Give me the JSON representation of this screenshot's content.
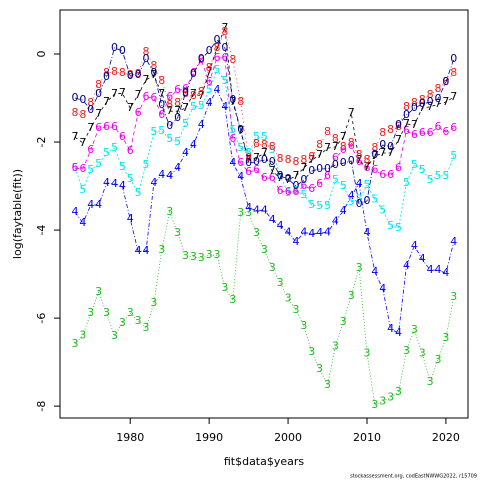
{
  "chart_data": {
    "type": "line",
    "xlabel": "fit$data$years",
    "ylabel": "log(faytable(fit))",
    "footer": "stockassessment.org, codEastNWWG2022, r15709",
    "xlim": [
      1971.1,
      2022.8
    ],
    "ylim": [
      -8.27,
      1.0
    ],
    "xticks": [
      1980,
      1990,
      2000,
      2010,
      2020
    ],
    "yticks": [
      -8,
      -6,
      -4,
      -2,
      0
    ],
    "x": [
      1973,
      1974,
      1975,
      1976,
      1977,
      1978,
      1979,
      1980,
      1981,
      1982,
      1983,
      1984,
      1985,
      1986,
      1987,
      1988,
      1989,
      1990,
      1991,
      1992,
      1993,
      1994,
      1995,
      1996,
      1997,
      1998,
      1999,
      2000,
      2001,
      2002,
      2003,
      2004,
      2005,
      2006,
      2007,
      2008,
      2009,
      2010,
      2011,
      2012,
      2013,
      2014,
      2015,
      2016,
      2017,
      2018,
      2019,
      2020,
      2021
    ],
    "series": [
      {
        "name": "3",
        "color": "#22bb22",
        "values": [
          -6.59,
          -6.39,
          -5.89,
          -5.41,
          -5.89,
          -6.41,
          -6.11,
          -5.89,
          -6.07,
          -6.23,
          -5.66,
          -4.45,
          -3.59,
          -4.07,
          -4.59,
          -4.61,
          -4.64,
          -4.57,
          -4.57,
          -5.32,
          -5.59,
          -3.61,
          -3.61,
          -4.07,
          -4.45,
          -4.86,
          -5.2,
          -5.55,
          -5.82,
          -6.18,
          -6.77,
          -7.16,
          -7.52,
          -6.64,
          -6.09,
          -5.5,
          -4.86,
          -6.8,
          -7.98,
          -7.89,
          -7.8,
          -7.68,
          -6.75,
          -6.27,
          -6.8,
          -7.45,
          -6.95,
          -6.45,
          -5.52
        ]
      },
      {
        "name": "4",
        "color": "#0000ff",
        "values": [
          -3.59,
          -3.84,
          -3.43,
          -3.43,
          -2.93,
          -2.95,
          -3.0,
          -3.75,
          -4.48,
          -4.48,
          -2.93,
          -2.75,
          -2.77,
          -2.59,
          -2.25,
          -2.07,
          -1.61,
          -1.11,
          -0.82,
          -1.2,
          -2.48,
          -2.8,
          -3.5,
          -3.55,
          -3.55,
          -3.77,
          -3.91,
          -4.05,
          -4.27,
          -4.05,
          -4.09,
          -4.07,
          -4.05,
          -3.8,
          -3.57,
          -3.23,
          -2.95,
          -4.07,
          -4.95,
          -5.34,
          -6.25,
          -6.34,
          -4.82,
          -4.36,
          -4.66,
          -4.91,
          -4.91,
          -4.98,
          -4.27
        ]
      },
      {
        "name": "5",
        "color": "#00e5ee",
        "values": [
          -2.59,
          -3.09,
          -2.64,
          -2.5,
          -2.25,
          -2.14,
          -2.57,
          -2.84,
          -3.16,
          -2.52,
          -1.77,
          -1.75,
          -1.93,
          -2.0,
          -1.59,
          -1.2,
          -1.18,
          -0.82,
          -0.36,
          -0.61,
          -1.73,
          -2.14,
          -2.25,
          -1.89,
          -1.89,
          -2.18,
          -2.77,
          -3.16,
          -3.11,
          -3.2,
          -3.43,
          -3.45,
          -3.45,
          -2.86,
          -3.0,
          -3.36,
          -3.3,
          -2.98,
          -3.3,
          -3.55,
          -3.91,
          -3.95,
          -2.93,
          -2.52,
          -2.64,
          -2.86,
          -2.77,
          -2.77,
          -2.32
        ]
      },
      {
        "name": "6",
        "color": "#ee00ee",
        "values": [
          -2.59,
          -2.61,
          -2.18,
          -1.68,
          -1.66,
          -1.66,
          -1.89,
          -2.2,
          -1.34,
          -0.98,
          -1.0,
          -1.39,
          -0.98,
          -0.82,
          -0.8,
          -0.43,
          -0.14,
          -0.64,
          -0.09,
          -0.09,
          -1.93,
          -2.48,
          -2.68,
          -2.64,
          -2.82,
          -2.82,
          -3.11,
          -3.14,
          -3.14,
          -3.0,
          -3.07,
          -2.95,
          -2.77,
          -2.36,
          -2.18,
          -2.09,
          -2.45,
          -2.59,
          -2.64,
          -2.75,
          -2.75,
          -2.59,
          -1.75,
          -1.84,
          -1.8,
          -1.8,
          -1.66,
          -1.77,
          -1.68
        ]
      },
      {
        "name": "7",
        "color": "#000000",
        "values": [
          -1.89,
          -2.02,
          -1.68,
          -1.36,
          -1.09,
          -0.91,
          -0.89,
          -1.23,
          -0.93,
          -0.59,
          -0.48,
          -0.91,
          -1.3,
          -1.3,
          -1.23,
          -0.91,
          -0.95,
          -0.41,
          0.14,
          0.59,
          -1.09,
          -1.75,
          -2.41,
          -2.36,
          -2.25,
          -2.66,
          -2.82,
          -2.86,
          -2.77,
          -2.59,
          -2.41,
          -2.3,
          -2.14,
          -2.11,
          -1.89,
          -1.34,
          -2.41,
          -2.57,
          -2.32,
          -2.25,
          -2.25,
          -1.95,
          -1.59,
          -1.61,
          -1.23,
          -1.2,
          -1.14,
          -1.09,
          -0.98
        ]
      },
      {
        "name": "8",
        "color": "#ee2222",
        "values": [
          -1.34,
          -1.39,
          -1.11,
          -0.7,
          -0.43,
          -0.41,
          -0.43,
          -0.48,
          -0.45,
          0.05,
          -0.27,
          -0.61,
          -1.16,
          -1.11,
          -0.91,
          -0.95,
          -0.86,
          -0.32,
          0.14,
          0.5,
          -0.14,
          -1.09,
          -2.36,
          -2.05,
          -2.07,
          -2.11,
          -2.39,
          -2.41,
          -2.45,
          -2.41,
          -2.34,
          -2.07,
          -1.77,
          -1.93,
          -2.11,
          -2.02,
          -2.3,
          -2.41,
          -2.14,
          -1.8,
          -1.73,
          -1.66,
          -1.2,
          -1.11,
          -1.05,
          -0.93,
          -0.8,
          -0.64,
          -0.43
        ]
      },
      {
        "name": "0",
        "color": "#00008b",
        "values": [
          -1.0,
          -1.05,
          -1.27,
          -0.91,
          -0.52,
          0.14,
          0.07,
          -0.5,
          -0.48,
          -0.11,
          -0.43,
          -1.16,
          -1.64,
          -1.45,
          -0.89,
          -0.45,
          -0.11,
          0.07,
          0.32,
          0.14,
          -1.05,
          -1.73,
          -2.48,
          -2.45,
          -2.41,
          -2.45,
          -2.77,
          -2.84,
          -3.0,
          -2.86,
          -2.66,
          -2.61,
          -2.61,
          -2.52,
          -2.48,
          -2.43,
          -3.41,
          -3.34,
          -2.3,
          -2.07,
          -2.11,
          -1.61,
          -1.39,
          -1.23,
          -1.14,
          -1.09,
          -1.02,
          -0.64,
          -0.11
        ]
      }
    ]
  }
}
